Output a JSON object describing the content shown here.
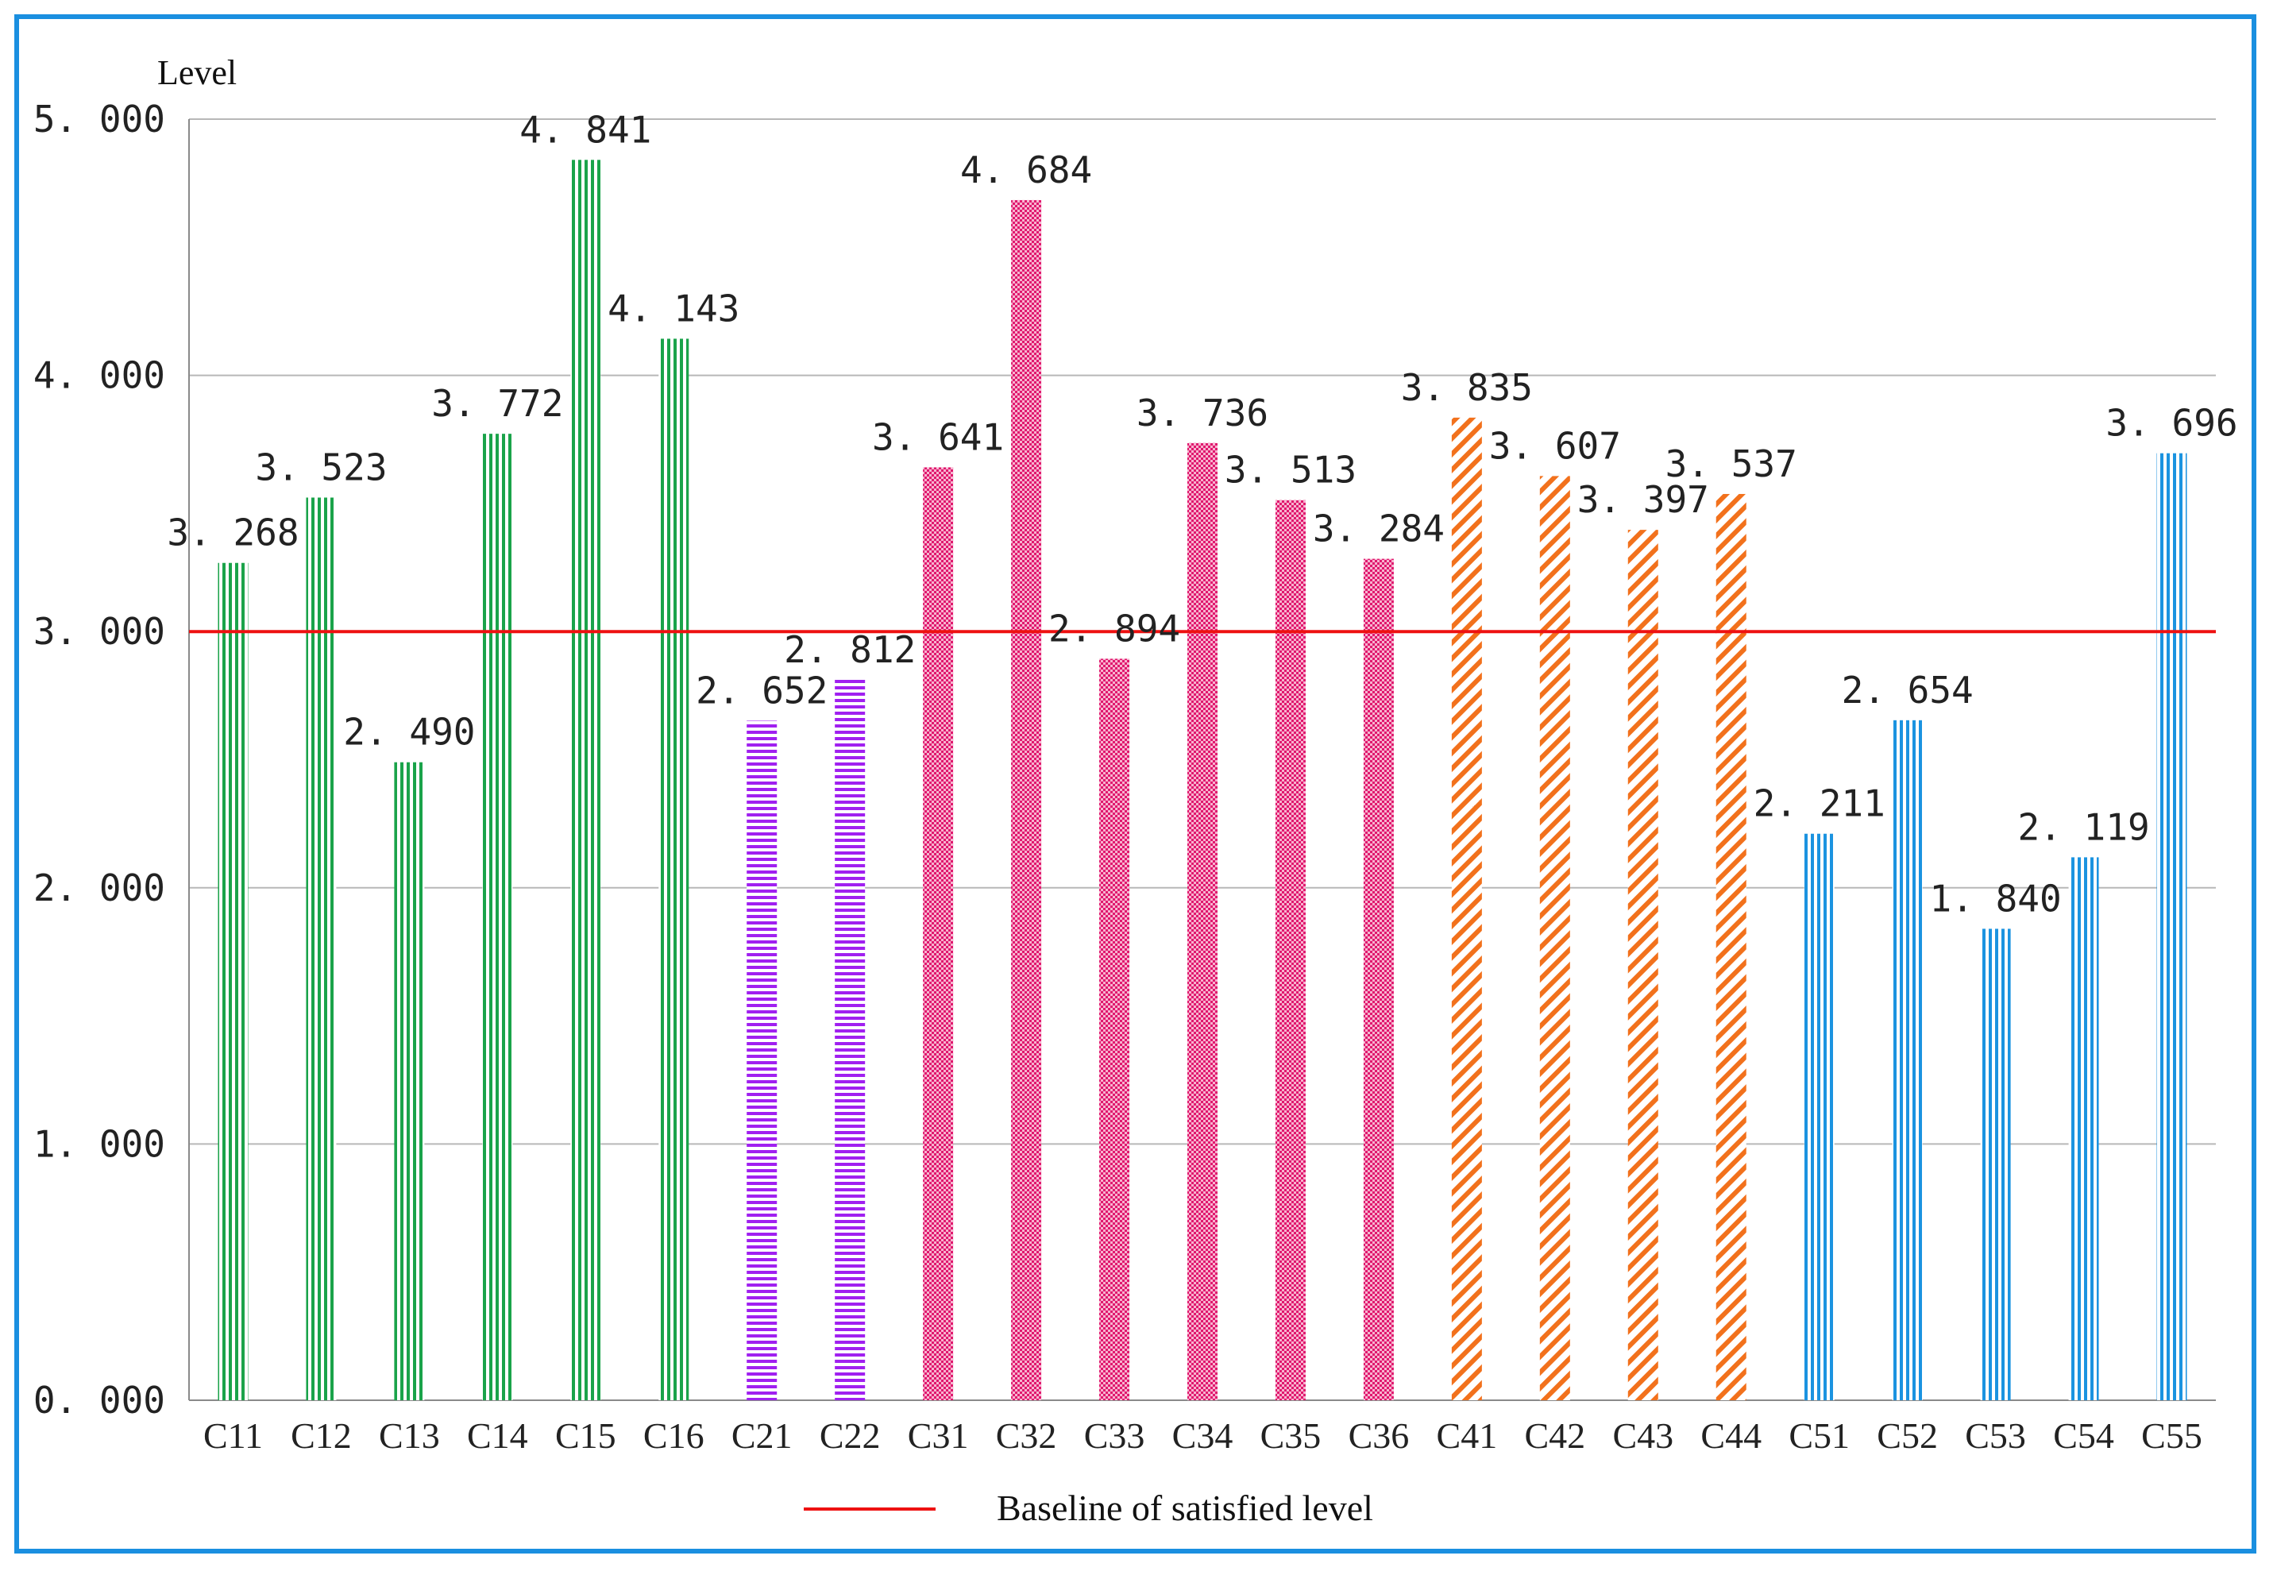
{
  "chart_data": {
    "type": "bar",
    "title": "",
    "xlabel": "",
    "ylabel": "Level",
    "ylim": [
      0,
      5
    ],
    "yticks": [
      "0. 000",
      "1. 000",
      "2. 000",
      "3. 000",
      "4. 000",
      "5. 000"
    ],
    "categories": [
      "C11",
      "C12",
      "C13",
      "C14",
      "C15",
      "C16",
      "C21",
      "C22",
      "C31",
      "C32",
      "C33",
      "C34",
      "C35",
      "C36",
      "C41",
      "C42",
      "C43",
      "C44",
      "C51",
      "C52",
      "C53",
      "C54",
      "C55"
    ],
    "values": [
      3.268,
      3.523,
      2.49,
      3.772,
      4.841,
      4.143,
      2.652,
      2.812,
      3.641,
      4.684,
      2.894,
      3.736,
      3.513,
      3.284,
      3.835,
      3.607,
      3.397,
      3.537,
      2.211,
      2.654,
      1.84,
      2.119,
      3.696
    ],
    "value_labels": [
      "3. 268",
      "3. 523",
      "2. 490",
      "3. 772",
      "4. 841",
      "4. 143",
      "2. 652",
      "2. 812",
      "3. 641",
      "4. 684",
      "2. 894",
      "3. 736",
      "3. 513",
      "3. 284",
      "3. 835",
      "3. 607",
      "3. 397",
      "3. 537",
      "2. 211",
      "2. 654",
      "1. 840",
      "2. 119",
      "3. 696"
    ],
    "groups": [
      "C1",
      "C1",
      "C1",
      "C1",
      "C1",
      "C1",
      "C2",
      "C2",
      "C3",
      "C3",
      "C3",
      "C3",
      "C3",
      "C3",
      "C4",
      "C4",
      "C4",
      "C4",
      "C5",
      "C5",
      "C5",
      "C5",
      "C5"
    ],
    "group_styles": {
      "C1": {
        "color": "#1aa34a",
        "pattern": "vertical-lines"
      },
      "C2": {
        "color": "#a020f0",
        "pattern": "horizontal-lines"
      },
      "C3": {
        "color": "#e0186e",
        "pattern": "checker"
      },
      "C4": {
        "color": "#f2711c",
        "pattern": "diagonal-lines"
      },
      "C5": {
        "color": "#1b93e0",
        "pattern": "vertical-lines"
      }
    },
    "baseline": {
      "value": 3.0,
      "label": "Baseline of satisfied level",
      "color": "#ee1111"
    },
    "grid": true,
    "legend": "bottom-center"
  }
}
